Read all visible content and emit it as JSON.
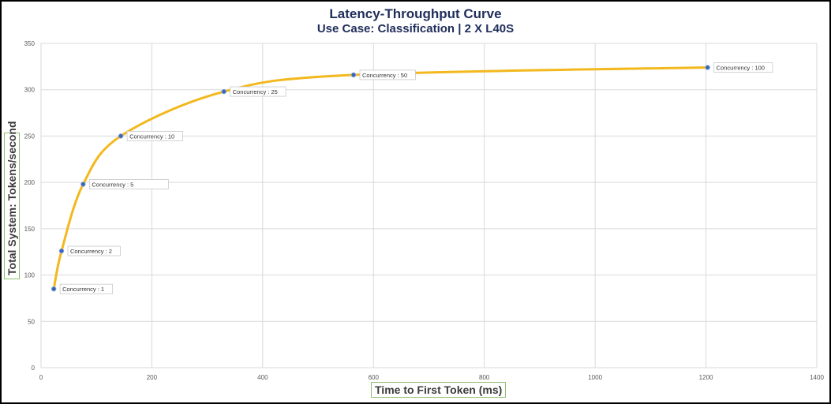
{
  "chart_data": {
    "type": "line",
    "title": "Latency-Throughput Curve",
    "subtitle": "Use Case: Classification | 2 X L40S",
    "xlabel": "Time to First Token (ms)",
    "ylabel": "Total System: Tokens/second",
    "xlim": [
      0,
      1400
    ],
    "ylim": [
      0,
      350
    ],
    "xticks": [
      0,
      200,
      400,
      600,
      800,
      1000,
      1200,
      1400
    ],
    "yticks": [
      0,
      50,
      100,
      150,
      200,
      250,
      300,
      350
    ],
    "grid": true,
    "legend": null,
    "series": [
      {
        "name": "Latency-Throughput",
        "color": "#f2b81d",
        "marker_color": "#3a66b8",
        "points": [
          {
            "x": 23,
            "y": 85,
            "label": "Concurrency : 1"
          },
          {
            "x": 37,
            "y": 126,
            "label": "Concurrency : 2"
          },
          {
            "x": 76,
            "y": 198,
            "label": "Concurrency : 5"
          },
          {
            "x": 144,
            "y": 250,
            "label": "Concurrency : 10"
          },
          {
            "x": 330,
            "y": 298,
            "label": "Concurrency : 25"
          },
          {
            "x": 564,
            "y": 316,
            "label": "Concurrency : 50"
          },
          {
            "x": 1203,
            "y": 324,
            "label": "Concurrency : 100"
          }
        ]
      }
    ]
  },
  "colors": {
    "title": "#1f2d5a",
    "line": "#f2b81d",
    "marker": "#3a66b8",
    "grid": "#d9d9d9",
    "axis_title_border": "#8fbf6f"
  }
}
